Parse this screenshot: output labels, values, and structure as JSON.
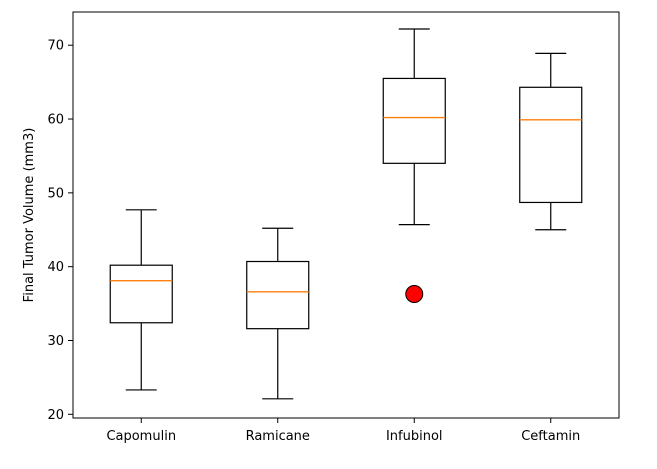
{
  "chart_data": {
    "type": "boxplot",
    "title": "",
    "xlabel": "",
    "ylabel": "Final Tumor Volume (mm3)",
    "ylim": [
      19.5,
      74.5
    ],
    "yticks": [
      20,
      30,
      40,
      50,
      60,
      70
    ],
    "grid": false,
    "categories": [
      "Capomulin",
      "Ramicane",
      "Infubinol",
      "Ceftamin"
    ],
    "boxes": [
      {
        "name": "Capomulin",
        "whisker_low": 23.3,
        "q1": 32.4,
        "median": 38.1,
        "q3": 40.2,
        "whisker_high": 47.7,
        "outliers": []
      },
      {
        "name": "Ramicane",
        "whisker_low": 22.1,
        "q1": 31.6,
        "median": 36.6,
        "q3": 40.7,
        "whisker_high": 45.2,
        "outliers": []
      },
      {
        "name": "Infubinol",
        "whisker_low": 45.7,
        "q1": 54.0,
        "median": 60.2,
        "q3": 65.5,
        "whisker_high": 72.2,
        "outliers": [
          36.3
        ]
      },
      {
        "name": "Ceftamin",
        "whisker_low": 45.0,
        "q1": 48.7,
        "median": 59.9,
        "q3": 64.3,
        "whisker_high": 68.9,
        "outliers": []
      }
    ],
    "colors": {
      "box": "#000000",
      "median": "#ff7f0e",
      "outlier_fill": "#ff0000",
      "outlier_edge": "#000000"
    }
  }
}
